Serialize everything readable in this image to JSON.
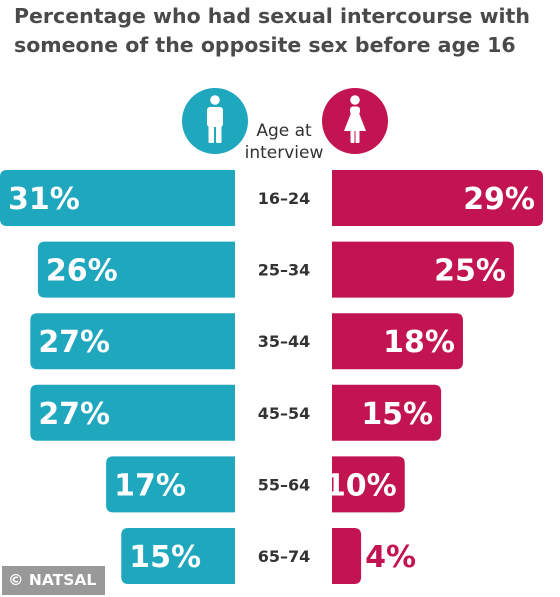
{
  "title": "Percentage who had sexual intercourse with someone of the opposite sex before age 16",
  "age_header": "Age at interview",
  "credit": "© NATSAL",
  "colors": {
    "men": "#1ea7bd",
    "women": "#c31452",
    "title": "#4a4a4a"
  },
  "icons": {
    "men": "male-figure-icon",
    "women": "female-figure-icon"
  },
  "chart_data": {
    "type": "bar",
    "orientation": "horizontal-butterfly",
    "title": "Percentage who had sexual intercourse with someone of the opposite sex before age 16",
    "category_label": "Age at interview",
    "categories": [
      "16–24",
      "25–34",
      "35–44",
      "45–54",
      "55–64",
      "65–74"
    ],
    "series": [
      {
        "side": "left",
        "values": [
          31,
          26,
          27,
          27,
          17,
          15
        ],
        "labels": [
          "31%",
          "26%",
          "27%",
          "27%",
          "17%",
          "15%"
        ]
      },
      {
        "side": "right",
        "values": [
          29,
          25,
          18,
          15,
          10,
          4
        ],
        "labels": [
          "29%",
          "25%",
          "18%",
          "15%",
          "10%",
          "4%"
        ]
      }
    ],
    "unit": "%"
  }
}
